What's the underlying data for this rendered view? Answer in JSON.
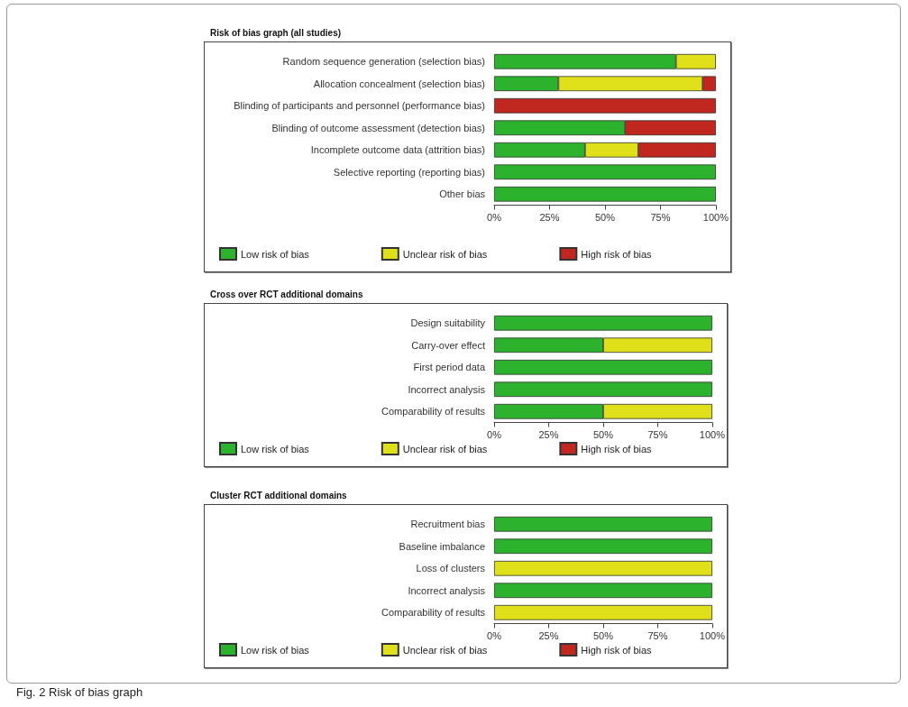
{
  "chart_data": [
    {
      "type": "bar",
      "title": "Risk of bias graph (all studies)",
      "orientation": "horizontal",
      "stacked": true,
      "legend": "bottom",
      "grid": false,
      "categories": [
        "Random sequence generation (selection bias)",
        "Allocation concealment (selection bias)",
        "Blinding of participants and personnel (performance bias)",
        "Blinding of outcome assessment (detection bias)",
        "Incomplete outcome data (attrition bias)",
        "Selective reporting (reporting bias)",
        "Other bias"
      ],
      "series": [
        {
          "name": "Low risk of bias",
          "color": "#2db22d",
          "values": [
            82,
            29,
            0,
            59,
            41,
            100,
            100
          ]
        },
        {
          "name": "Unclear risk of bias",
          "color": "#e0e01a",
          "values": [
            18,
            65,
            0,
            0,
            24,
            0,
            0
          ]
        },
        {
          "name": "High risk of bias",
          "color": "#c0271e",
          "values": [
            0,
            6,
            100,
            41,
            35,
            0,
            0
          ]
        }
      ],
      "xlim": [
        0,
        100
      ],
      "xticks": [
        {
          "value": 0,
          "label": "0%"
        },
        {
          "value": 25,
          "label": "25%"
        },
        {
          "value": 50,
          "label": "50%"
        },
        {
          "value": 75,
          "label": "75%"
        },
        {
          "value": 100,
          "label": "100%"
        }
      ]
    },
    {
      "type": "bar",
      "title": "Cross over RCT additional domains",
      "orientation": "horizontal",
      "stacked": true,
      "legend": "bottom",
      "grid": false,
      "categories": [
        "Design suitability",
        "Carry-over effect",
        "First period data",
        "Incorrect analysis",
        "Comparability of results"
      ],
      "series": [
        {
          "name": "Low risk of bias",
          "color": "#2db22d",
          "values": [
            100,
            50,
            100,
            100,
            50
          ]
        },
        {
          "name": "Unclear risk of bias",
          "color": "#e0e01a",
          "values": [
            0,
            50,
            0,
            0,
            50
          ]
        },
        {
          "name": "High risk of bias",
          "color": "#c0271e",
          "values": [
            0,
            0,
            0,
            0,
            0
          ]
        }
      ],
      "xlim": [
        0,
        100
      ],
      "xticks": [
        {
          "value": 0,
          "label": "0%"
        },
        {
          "value": 25,
          "label": "25%"
        },
        {
          "value": 50,
          "label": "50%"
        },
        {
          "value": 75,
          "label": "75%"
        },
        {
          "value": 100,
          "label": "100%"
        }
      ]
    },
    {
      "type": "bar",
      "title": "Cluster RCT additional domains",
      "orientation": "horizontal",
      "stacked": true,
      "legend": "bottom",
      "grid": false,
      "categories": [
        "Recruitment bias",
        "Baseline imbalance",
        "Loss of clusters",
        "Incorrect analysis",
        "Comparability of results"
      ],
      "series": [
        {
          "name": "Low risk of bias",
          "color": "#2db22d",
          "values": [
            100,
            100,
            0,
            100,
            0
          ]
        },
        {
          "name": "Unclear risk of bias",
          "color": "#e0e01a",
          "values": [
            0,
            0,
            100,
            0,
            100
          ]
        },
        {
          "name": "High risk of bias",
          "color": "#c0271e",
          "values": [
            0,
            0,
            0,
            0,
            0
          ]
        }
      ],
      "xlim": [
        0,
        100
      ],
      "xticks": [
        {
          "value": 0,
          "label": "0%"
        },
        {
          "value": 25,
          "label": "25%"
        },
        {
          "value": 50,
          "label": "50%"
        },
        {
          "value": 75,
          "label": "75%"
        },
        {
          "value": 100,
          "label": "100%"
        }
      ],
      "annotations": [
        "Fig. 2 Risk of bias graph"
      ]
    }
  ]
}
